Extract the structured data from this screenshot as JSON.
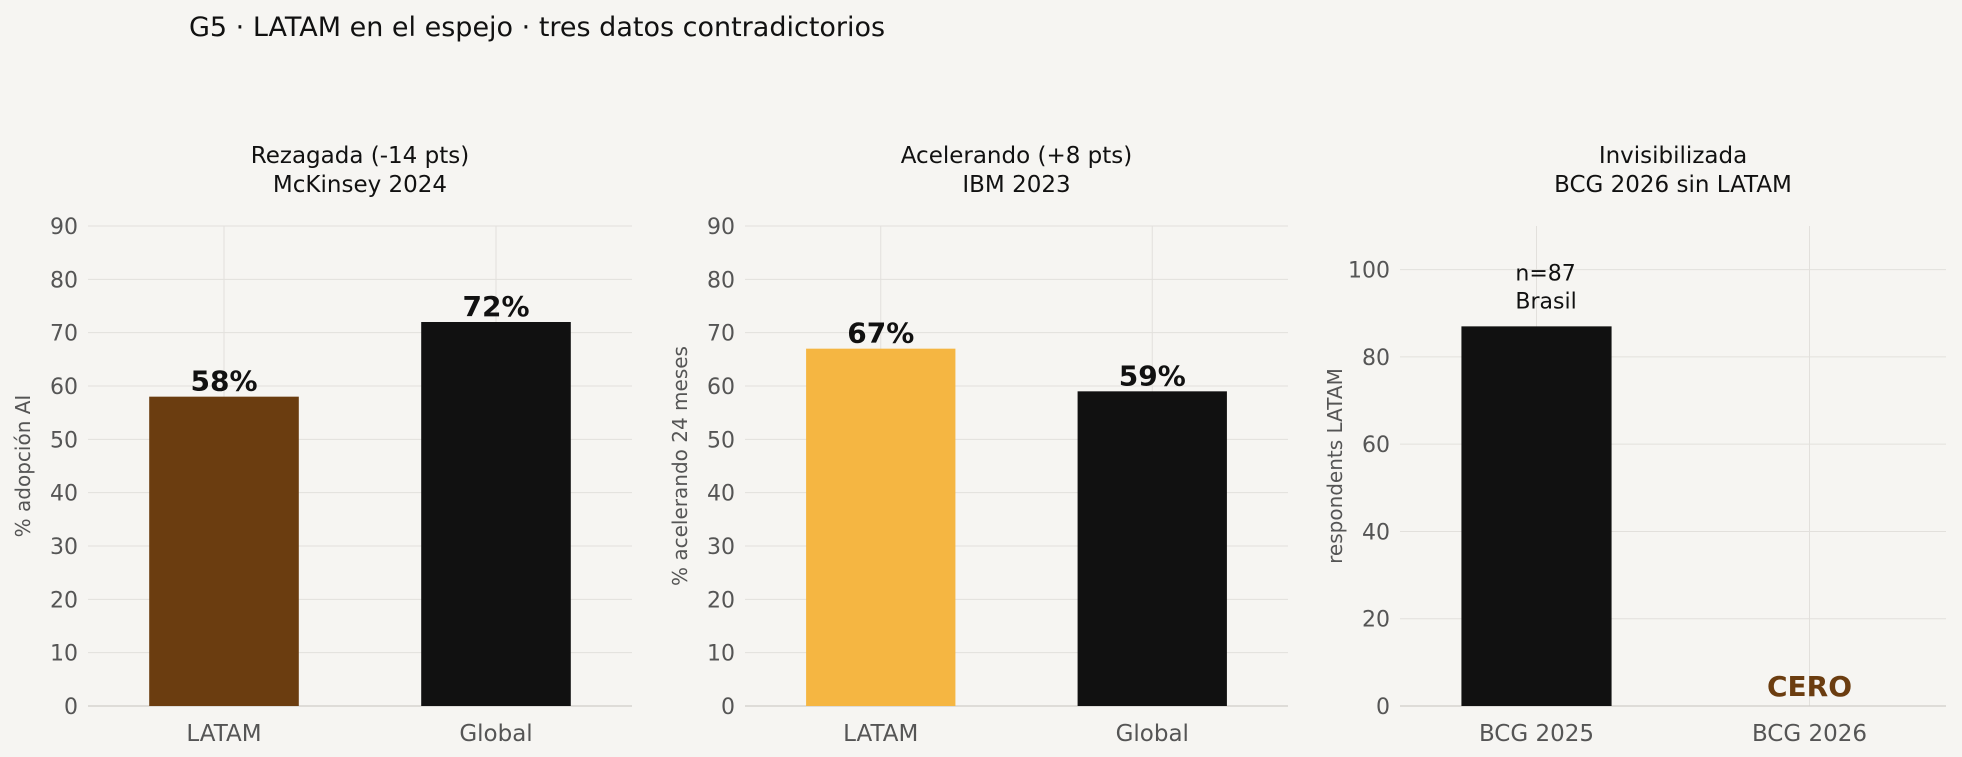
{
  "figure": {
    "suptitle": "G5 · LATAM en el espejo · tres datos contradictorios"
  },
  "chart_data": [
    {
      "type": "bar",
      "title": [
        "Rezagada (-14 pts)",
        "McKinsey 2024"
      ],
      "ylabel": "% adopción AI",
      "categories": [
        "LATAM",
        "Global"
      ],
      "values": [
        58,
        72
      ],
      "value_labels": [
        "58%",
        "72%"
      ],
      "colors": [
        "#6b3d10",
        "#111111"
      ],
      "ylim": [
        0,
        90
      ],
      "yticks": [
        0,
        10,
        20,
        30,
        40,
        50,
        60,
        70,
        80,
        90
      ],
      "grid": true,
      "annotations": []
    },
    {
      "type": "bar",
      "title": [
        "Acelerando (+8 pts)",
        "IBM 2023"
      ],
      "ylabel": "% acelerando 24 meses",
      "categories": [
        "LATAM",
        "Global"
      ],
      "values": [
        67,
        59
      ],
      "value_labels": [
        "67%",
        "59%"
      ],
      "colors": [
        "#f5b642",
        "#111111"
      ],
      "ylim": [
        0,
        90
      ],
      "yticks": [
        0,
        10,
        20,
        30,
        40,
        50,
        60,
        70,
        80,
        90
      ],
      "grid": true,
      "annotations": []
    },
    {
      "type": "bar",
      "title": [
        "Invisibilizada",
        "BCG 2026 sin LATAM"
      ],
      "ylabel": "respondents LATAM",
      "categories": [
        "BCG 2025",
        "BCG 2026"
      ],
      "values": [
        87,
        0
      ],
      "value_labels": [],
      "colors": [
        "#111111",
        "#111111"
      ],
      "ylim": [
        0,
        110
      ],
      "yticks": [
        0,
        20,
        40,
        60,
        80,
        100
      ],
      "grid": true,
      "annotations": [
        {
          "lines": [
            "n=87",
            "Brasil"
          ],
          "category_index": 0,
          "y": 87,
          "style": "normal",
          "color": "#111111"
        },
        {
          "lines": [
            "CERO"
          ],
          "category_index": 1,
          "y": 0,
          "style": "bold",
          "color": "#6b3d10"
        }
      ]
    }
  ]
}
